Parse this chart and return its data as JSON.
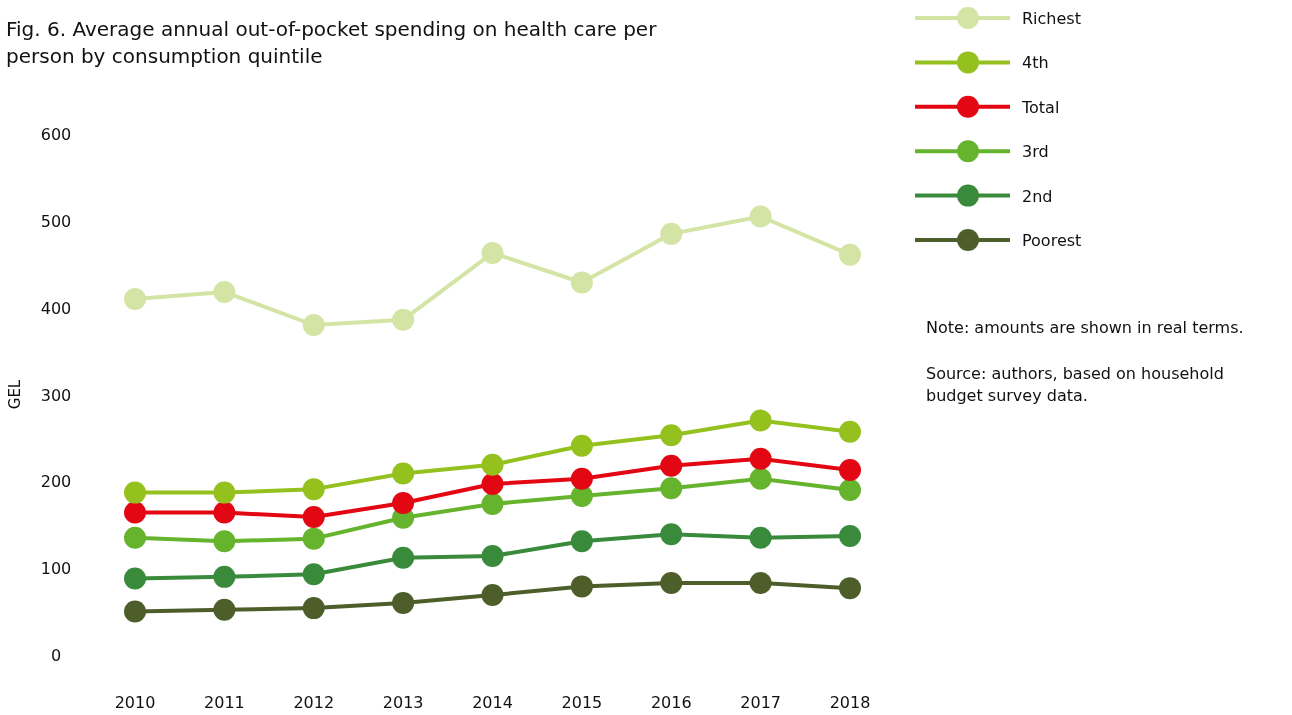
{
  "chart_data": {
    "type": "line",
    "title": "Fig. 6. Average annual out-of-pocket spending on health care per person by consumption quintile",
    "ylabel": "GEL",
    "categories": [
      "2010",
      "2011",
      "2012",
      "2013",
      "2014",
      "2015",
      "2016",
      "2017",
      "2018"
    ],
    "series": [
      {
        "name": "Richest",
        "color": "#d4e4a4",
        "values": [
          410,
          418,
          380,
          386,
          463,
          429,
          485,
          505,
          461
        ]
      },
      {
        "name": "4th",
        "color": "#95c11f",
        "values": [
          187,
          187,
          191,
          209,
          219,
          241,
          253,
          270,
          257
        ]
      },
      {
        "name": "Total",
        "color": "#e30613",
        "values": [
          164,
          164,
          159,
          175,
          197,
          203,
          218,
          226,
          213
        ]
      },
      {
        "name": "3rd",
        "color": "#66b32e",
        "values": [
          135,
          131,
          134,
          158,
          174,
          183,
          192,
          203,
          190
        ]
      },
      {
        "name": "2nd",
        "color": "#3a8a3c",
        "values": [
          88,
          90,
          93,
          112,
          114,
          131,
          139,
          135,
          137
        ]
      },
      {
        "name": "Poorest",
        "color": "#4e5e2a",
        "values": [
          50,
          52,
          54,
          60,
          69,
          79,
          83,
          83,
          77
        ]
      }
    ],
    "ylim": [
      0,
      600
    ],
    "yticks": [
      0,
      100,
      200,
      300,
      400,
      500,
      600
    ],
    "grid": false,
    "legend": "right",
    "marker": "circle",
    "line_style": "solid",
    "annotations": [
      "Note: amounts are shown in real terms.",
      "Source: authors, based on household budget survey data."
    ]
  }
}
